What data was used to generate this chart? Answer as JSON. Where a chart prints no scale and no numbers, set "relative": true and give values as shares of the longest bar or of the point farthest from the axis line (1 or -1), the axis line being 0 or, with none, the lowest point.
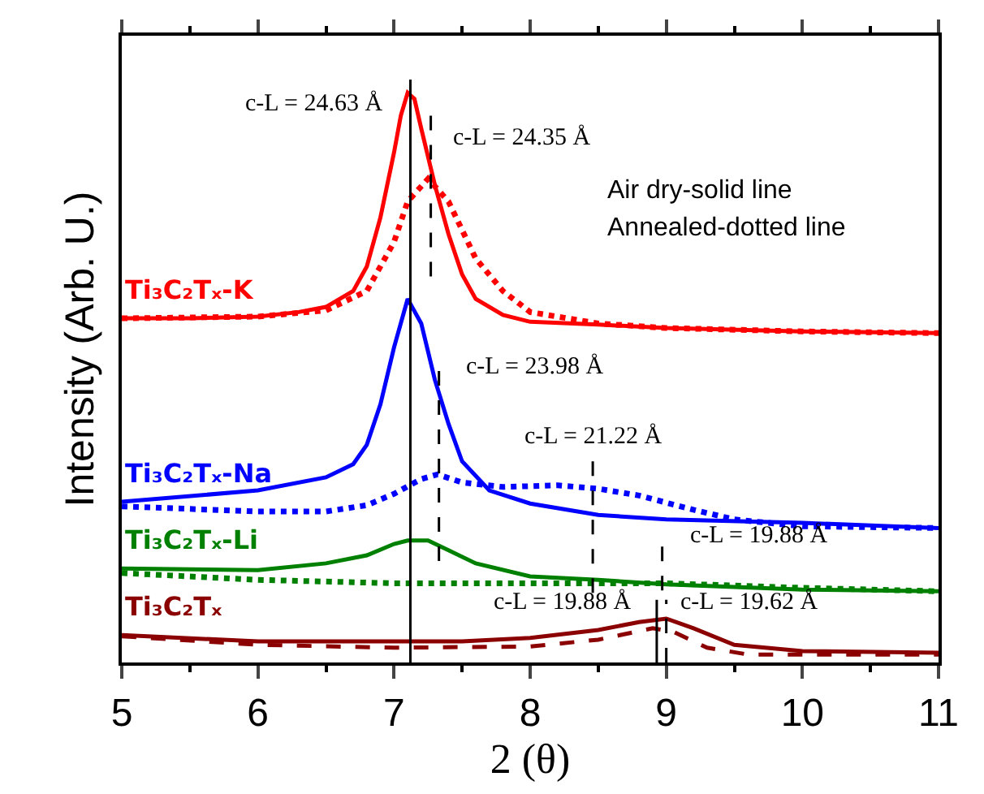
{
  "chart_data": {
    "type": "line",
    "relative": true,
    "xlabel": "2 (θ)",
    "ylabel": "Intensity (Arb. U.)",
    "xlim": [
      5,
      11
    ],
    "xticks": [
      5,
      6,
      7,
      8,
      9,
      10,
      11
    ],
    "legend": false,
    "marker": "none",
    "series": [
      {
        "name": "Ti₃C₂Tₓ-K",
        "color": "#ff0000",
        "line_style": "solid",
        "x": [
          5.0,
          5.5,
          6.0,
          6.3,
          6.5,
          6.7,
          6.8,
          6.9,
          7.0,
          7.05,
          7.1,
          7.15,
          7.2,
          7.3,
          7.4,
          7.5,
          7.6,
          7.8,
          8.0,
          8.5,
          9.0,
          10.0,
          11.0
        ],
        "values": [
          0.604,
          0.604,
          0.607,
          0.615,
          0.624,
          0.652,
          0.695,
          0.781,
          0.895,
          0.96,
          1.0,
          0.989,
          0.937,
          0.838,
          0.752,
          0.681,
          0.638,
          0.61,
          0.598,
          0.593,
          0.587,
          0.581,
          0.578
        ]
      },
      {
        "color": "#ff0000",
        "line_style": "dotted",
        "x": [
          5.0,
          6.0,
          6.5,
          6.8,
          7.0,
          7.1,
          7.25,
          7.4,
          7.6,
          7.8,
          8.0,
          8.5,
          9.0,
          10.0,
          11.0
        ],
        "values": [
          0.604,
          0.607,
          0.618,
          0.652,
          0.738,
          0.809,
          0.849,
          0.809,
          0.709,
          0.652,
          0.615,
          0.595,
          0.587,
          0.581,
          0.578
        ]
      },
      {
        "name": "Ti₃C₂Tₓ-Na",
        "color": "#0000ff",
        "line_style": "solid",
        "x": [
          5.0,
          6.0,
          6.5,
          6.7,
          6.8,
          6.9,
          7.0,
          7.1,
          7.2,
          7.3,
          7.4,
          7.5,
          7.7,
          8.0,
          8.5,
          9.0,
          10.0,
          11.0
        ],
        "values": [
          0.282,
          0.302,
          0.325,
          0.348,
          0.382,
          0.453,
          0.553,
          0.638,
          0.595,
          0.496,
          0.419,
          0.353,
          0.302,
          0.279,
          0.259,
          0.251,
          0.245,
          0.236
        ]
      },
      {
        "color": "#0000ff",
        "line_style": "dotted",
        "x": [
          5.0,
          6.0,
          6.5,
          6.8,
          7.0,
          7.2,
          7.32,
          7.5,
          7.8,
          8.2,
          8.5,
          8.8,
          9.2,
          9.5,
          10.0,
          11.0
        ],
        "values": [
          0.274,
          0.265,
          0.265,
          0.276,
          0.296,
          0.322,
          0.33,
          0.316,
          0.308,
          0.311,
          0.305,
          0.293,
          0.268,
          0.251,
          0.239,
          0.236
        ]
      },
      {
        "name": "Ti₃C₂Tₓ-Li",
        "color": "#008000",
        "line_style": "solid",
        "x": [
          5.0,
          6.0,
          6.5,
          6.8,
          7.0,
          7.1,
          7.25,
          7.4,
          7.6,
          8.0,
          8.5,
          9.0,
          10.0,
          11.0
        ],
        "values": [
          0.165,
          0.162,
          0.174,
          0.188,
          0.208,
          0.214,
          0.214,
          0.197,
          0.174,
          0.151,
          0.145,
          0.137,
          0.128,
          0.125
        ]
      },
      {
        "color": "#008000",
        "line_style": "dotted",
        "x": [
          5.0,
          6.0,
          7.0,
          8.0,
          9.0,
          10.0,
          11.0
        ],
        "values": [
          0.157,
          0.145,
          0.139,
          0.139,
          0.139,
          0.131,
          0.125
        ]
      },
      {
        "name": "Ti₃C₂Tₓ",
        "color": "#8b0000",
        "line_style": "solid",
        "x": [
          5.0,
          6.0,
          7.0,
          7.5,
          8.0,
          8.5,
          8.8,
          9.0,
          9.2,
          9.5,
          10.0,
          11.0
        ],
        "values": [
          0.048,
          0.037,
          0.037,
          0.037,
          0.043,
          0.057,
          0.071,
          0.077,
          0.06,
          0.031,
          0.02,
          0.017
        ]
      },
      {
        "color": "#8b0000",
        "line_style": "dashed",
        "x": [
          5.0,
          6.0,
          7.0,
          8.0,
          8.5,
          8.9,
          9.05,
          9.3,
          9.6,
          11.0
        ],
        "values": [
          0.046,
          0.031,
          0.026,
          0.028,
          0.04,
          0.06,
          0.054,
          0.026,
          0.014,
          0.014
        ]
      }
    ],
    "ref_lines": [
      {
        "axis": "x",
        "value": 7.12,
        "color": "#000000",
        "line_style": "solid"
      },
      {
        "axis": "x",
        "value": 7.27,
        "color": "#000000",
        "line_style": "dashed"
      },
      {
        "axis": "x",
        "value": 7.33,
        "color": "#000000",
        "line_style": "dashed"
      },
      {
        "axis": "x",
        "value": 8.46,
        "color": "#000000",
        "line_style": "dashed"
      },
      {
        "axis": "x",
        "value": 8.97,
        "color": "#000000",
        "line_style": "dashed"
      },
      {
        "axis": "x",
        "value": 8.93,
        "color": "#000000",
        "line_style": "solid"
      },
      {
        "axis": "x",
        "value": 9.0,
        "color": "#000000",
        "line_style": "dashed"
      }
    ],
    "annotations": [
      "c-L = 24.63 Å",
      "c-L = 24.35 Å",
      "c-L = 23.98 Å",
      "c-L = 21.22 Å",
      "c-L = 19.88 Å",
      "c-L = 19.88 Å",
      "c-L = 19.62 Å",
      "Air dry-solid line",
      "Annealed-dotted line"
    ]
  }
}
